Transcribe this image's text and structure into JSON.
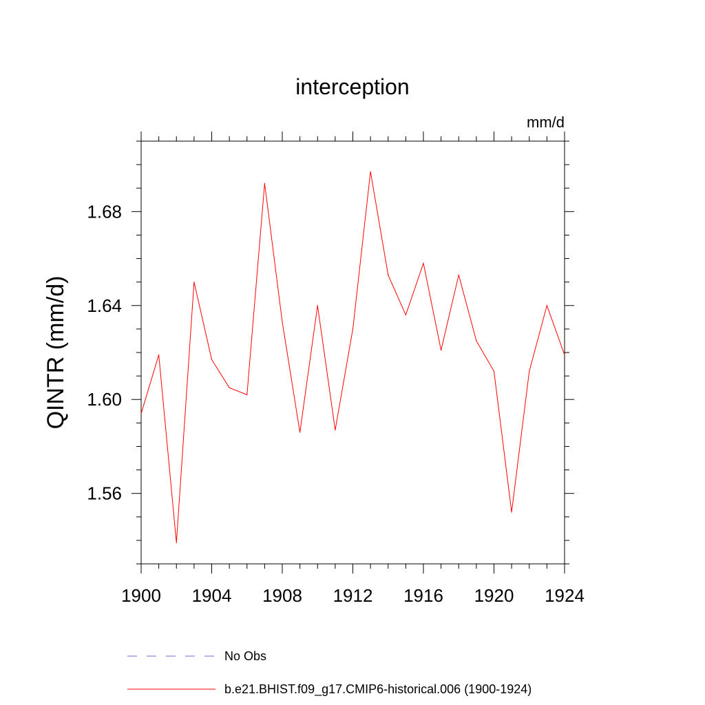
{
  "chart_data": {
    "type": "line",
    "title": "interception",
    "units": "mm/d",
    "ylabel": "QINTR  (mm/d)",
    "xlabel": "",
    "xlim": [
      1900,
      1924
    ],
    "ylim": [
      1.53,
      1.71
    ],
    "x_ticks": [
      1900,
      1904,
      1908,
      1912,
      1916,
      1920,
      1924
    ],
    "x_tick_labels": [
      "1900",
      "1904",
      "1908",
      "1912",
      "1916",
      "1920",
      "1924"
    ],
    "y_ticks": [
      1.56,
      1.6,
      1.64,
      1.68
    ],
    "y_tick_labels": [
      "1.56",
      "1.60",
      "1.64",
      "1.68"
    ],
    "grid": false,
    "legend_position": "bottom",
    "legend": [
      {
        "label": "No Obs",
        "color": "#6b6bd6",
        "style": "dashed"
      },
      {
        "label": "b.e21.BHIST.f09_g17.CMIP6-historical.006 (1900-1924)",
        "color": "#ff0000",
        "style": "solid"
      }
    ],
    "series": [
      {
        "name": "b.e21.BHIST.f09_g17.CMIP6-historical.006 (1900-1924)",
        "color": "#ff0000",
        "x": [
          1900,
          1901,
          1902,
          1903,
          1904,
          1905,
          1906,
          1907,
          1908,
          1909,
          1910,
          1911,
          1912,
          1913,
          1914,
          1915,
          1916,
          1917,
          1918,
          1919,
          1920,
          1921,
          1922,
          1923,
          1924
        ],
        "values": [
          1.594,
          1.619,
          1.539,
          1.65,
          1.617,
          1.605,
          1.602,
          1.692,
          1.633,
          1.586,
          1.64,
          1.587,
          1.63,
          1.697,
          1.653,
          1.636,
          1.658,
          1.621,
          1.653,
          1.625,
          1.612,
          1.552,
          1.612,
          1.64,
          1.619
        ]
      }
    ]
  }
}
